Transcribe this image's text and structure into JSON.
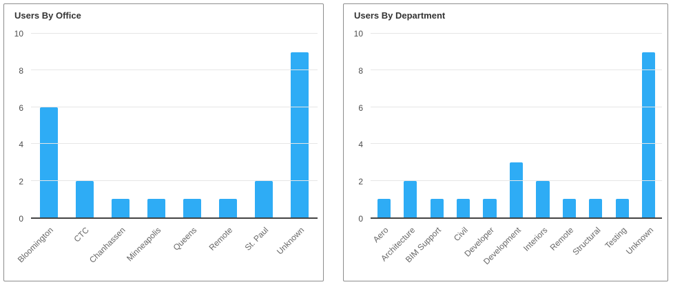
{
  "page": {
    "background": "#ffffff"
  },
  "theme": {
    "bar_color": "#2eacf5",
    "grid_color": "#e6e6e6",
    "axis_line_color": "#424242",
    "card_border_color": "#8c8c8c",
    "title_color": "#333333",
    "tick_label_color": "#4d4d4d",
    "category_label_color": "#666666"
  },
  "chart_data": [
    {
      "type": "bar",
      "title": "Users By Office",
      "categories": [
        "Bloomington",
        "CTC",
        "Chanhassen",
        "Minneapolis",
        "Queens",
        "Remote",
        "St. Paul",
        "Unknown"
      ],
      "values": [
        6,
        2,
        1,
        1,
        1,
        1,
        2,
        9
      ],
      "xlabel": "",
      "ylabel": "",
      "ylim": [
        0,
        10
      ],
      "yticks": [
        0,
        2,
        4,
        6,
        8,
        10
      ],
      "grid": true,
      "legend": "none",
      "bar_color": "#2eacf5",
      "category_label_rotation_deg": -45
    },
    {
      "type": "bar",
      "title": "Users By Department",
      "categories": [
        "Aero",
        "Architecture",
        "BIM Support",
        "Civil",
        "Developer",
        "Development",
        "Interiors",
        "Remote",
        "Structural",
        "Testing",
        "Unknown"
      ],
      "values": [
        1,
        2,
        1,
        1,
        1,
        3,
        2,
        1,
        1,
        1,
        9
      ],
      "xlabel": "",
      "ylabel": "",
      "ylim": [
        0,
        10
      ],
      "yticks": [
        0,
        2,
        4,
        6,
        8,
        10
      ],
      "grid": true,
      "legend": "none",
      "bar_color": "#2eacf5",
      "category_label_rotation_deg": -45
    }
  ]
}
